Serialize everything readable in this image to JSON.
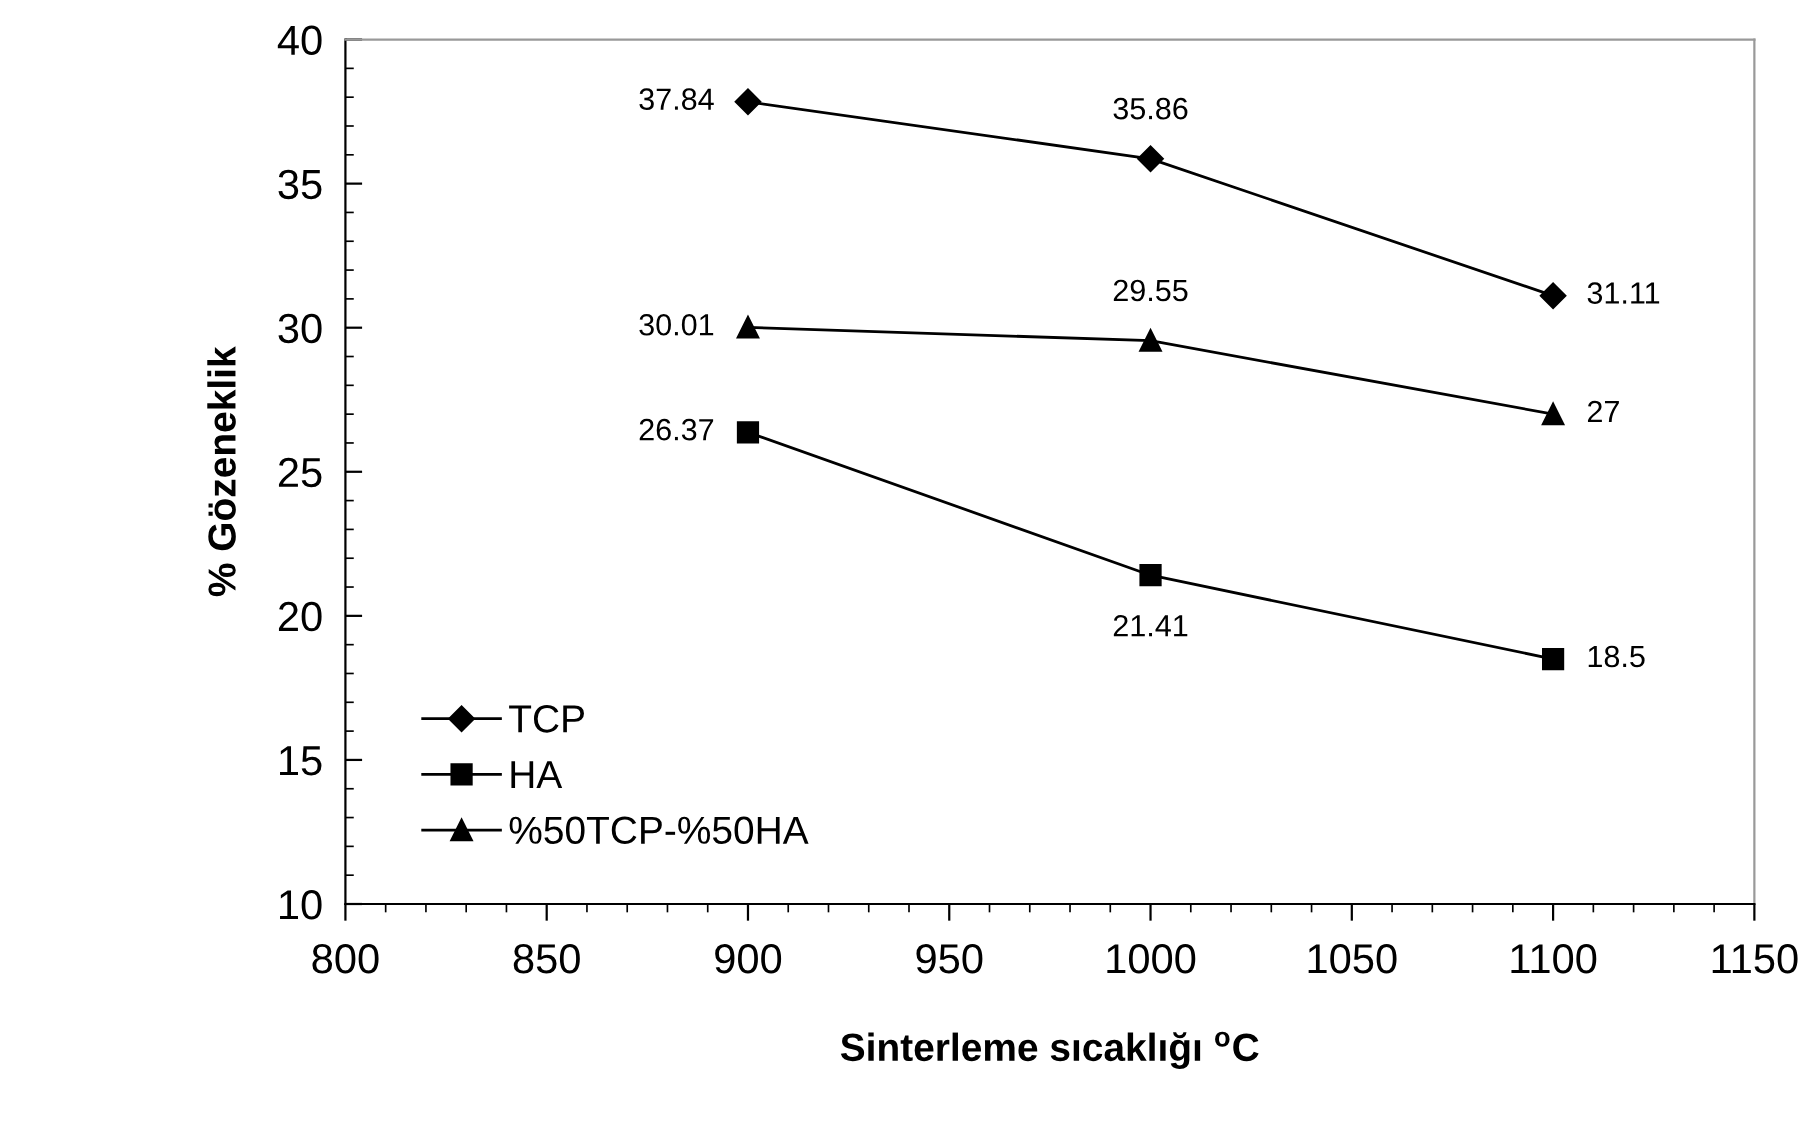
{
  "chart_data": {
    "type": "line",
    "xlabel": "Sinterleme sıcaklığı $^{o}$C",
    "ylabel": "% Gözeneklik",
    "x": [
      900,
      1000,
      1100
    ],
    "series": [
      {
        "name": "TCP",
        "color": "#000000",
        "marker": "diamond",
        "values": [
          37.84,
          35.86,
          31.11
        ]
      },
      {
        "name": "HA",
        "color": "#000000",
        "marker": "square",
        "values": [
          26.37,
          21.41,
          18.5
        ]
      },
      {
        "name": "%50TCP-%50HA",
        "color": "#000000",
        "marker": "triangle",
        "values": [
          30.01,
          29.55,
          27
        ]
      }
    ],
    "xlim": [
      800,
      1150
    ],
    "xticks": [
      800,
      850,
      900,
      950,
      1000,
      1050,
      1100,
      1150
    ],
    "ylim": [
      10,
      40
    ],
    "yticks": [
      10,
      15,
      20,
      25,
      30,
      35,
      40
    ],
    "grid": false,
    "legend": "bottom left",
    "data_labels": true,
    "line_style": "solid"
  }
}
